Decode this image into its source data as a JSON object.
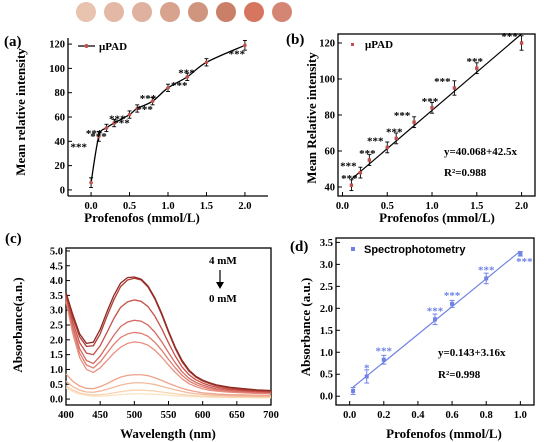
{
  "panels": {
    "a": {
      "label": "(a)",
      "xlabel": "Profenofos (mmol/L)",
      "ylabel": "Mean relative intensity",
      "legend": "μPAD",
      "star": "***"
    },
    "b": {
      "label": "(b)",
      "xlabel": "Profenofos (mmol/L)",
      "ylabel": "Mean Relative intensity",
      "legend": "μPAD",
      "equation": "y=40.068+42.5x",
      "r2": "R²=0.988",
      "star": "***"
    },
    "c": {
      "label": "(c)",
      "xlabel": "Wavelength (nm)",
      "ylabel": "Absorbance(a.n.)",
      "arrow_top": "4 mM",
      "arrow_bottom": "0 mM"
    },
    "d": {
      "label": "(d)",
      "xlabel": "Profenofos (mmol/L)",
      "ylabel": "Absorbance (a.u.)",
      "legend": "Spectrophotometry",
      "equation": "y=0.143+3.16x",
      "r2": "R²=0.998",
      "star": "***",
      "star_single": "*"
    }
  },
  "swatch_colors": [
    "#e8c3b0",
    "#e3b8a4",
    "#deb29e",
    "#d7a28e",
    "#d0957e",
    "#ca8068",
    "#d77660",
    "#d58573"
  ],
  "chart_data": [
    {
      "panel": "a",
      "type": "line",
      "x": [
        0.0,
        0.1,
        0.2,
        0.3,
        0.5,
        0.6,
        0.8,
        1.0,
        1.25,
        1.5,
        2.0
      ],
      "y": [
        6,
        44,
        51,
        55,
        62,
        67,
        73,
        84,
        93,
        105,
        119
      ],
      "err": [
        4,
        4,
        3,
        3,
        3,
        3,
        3,
        3,
        3,
        3,
        4
      ],
      "xlim": [
        -0.3,
        2.3
      ],
      "ylim": [
        -5,
        125
      ],
      "xticks": [
        0.0,
        0.5,
        1.0,
        1.5,
        2.0
      ],
      "yticks": [
        0,
        20,
        40,
        60,
        80,
        100,
        120
      ],
      "marker_color": "#c0504d",
      "line_color": "#000000"
    },
    {
      "panel": "b",
      "type": "scatter",
      "x": [
        0.1,
        0.2,
        0.3,
        0.5,
        0.6,
        0.8,
        1.0,
        1.25,
        1.5,
        2.0
      ],
      "y": [
        41,
        48,
        55,
        62,
        67,
        76,
        84,
        95,
        106,
        120
      ],
      "err": [
        3,
        3,
        3,
        3,
        3,
        3,
        3,
        4,
        3,
        4
      ],
      "fit": {
        "intercept": 40.068,
        "slope": 42.5
      },
      "xlim": [
        -0.05,
        2.15
      ],
      "ylim": [
        35,
        125
      ],
      "xticks": [
        0.0,
        0.5,
        1.0,
        1.5,
        2.0
      ],
      "yticks": [
        40,
        60,
        80,
        100,
        120
      ],
      "marker_color": "#c0504d",
      "line_color": "#000000"
    },
    {
      "panel": "c",
      "type": "line",
      "x": [
        400,
        410,
        420,
        430,
        440,
        450,
        460,
        470,
        480,
        490,
        500,
        510,
        520,
        530,
        540,
        550,
        560,
        570,
        580,
        590,
        600,
        610,
        620,
        640,
        660,
        680,
        700
      ],
      "series": [
        {
          "color": "#fbe3c2",
          "values": [
            0.38,
            0.25,
            0.17,
            0.12,
            0.1,
            0.1,
            0.11,
            0.13,
            0.15,
            0.17,
            0.18,
            0.18,
            0.17,
            0.16,
            0.15,
            0.13,
            0.11,
            0.1,
            0.09,
            0.08,
            0.07,
            0.06,
            0.06,
            0.05,
            0.05,
            0.04,
            0.04
          ]
        },
        {
          "color": "#f8d3b0",
          "values": [
            0.45,
            0.31,
            0.21,
            0.16,
            0.14,
            0.15,
            0.17,
            0.21,
            0.25,
            0.28,
            0.3,
            0.3,
            0.29,
            0.27,
            0.24,
            0.21,
            0.18,
            0.15,
            0.13,
            0.11,
            0.1,
            0.09,
            0.08,
            0.07,
            0.07,
            0.06,
            0.06
          ]
        },
        {
          "color": "#f3b99c",
          "values": [
            0.6,
            0.42,
            0.3,
            0.24,
            0.23,
            0.27,
            0.33,
            0.4,
            0.47,
            0.52,
            0.55,
            0.55,
            0.53,
            0.49,
            0.43,
            0.37,
            0.31,
            0.26,
            0.21,
            0.18,
            0.16,
            0.14,
            0.13,
            0.11,
            0.1,
            0.09,
            0.09
          ]
        },
        {
          "color": "#eea38a",
          "values": [
            0.85,
            0.6,
            0.44,
            0.36,
            0.35,
            0.42,
            0.52,
            0.64,
            0.74,
            0.8,
            0.82,
            0.82,
            0.79,
            0.72,
            0.63,
            0.53,
            0.44,
            0.36,
            0.3,
            0.25,
            0.21,
            0.19,
            0.17,
            0.15,
            0.14,
            0.13,
            0.12
          ]
        },
        {
          "color": "#e89080",
          "values": [
            3.3,
            2.2,
            1.4,
            1.0,
            0.9,
            1.05,
            1.3,
            1.55,
            1.75,
            1.88,
            1.93,
            1.9,
            1.82,
            1.65,
            1.42,
            1.15,
            0.9,
            0.68,
            0.52,
            0.42,
            0.35,
            0.3,
            0.27,
            0.23,
            0.21,
            0.19,
            0.18
          ]
        },
        {
          "color": "#e07e72",
          "values": [
            3.4,
            2.35,
            1.55,
            1.15,
            1.05,
            1.25,
            1.55,
            1.85,
            2.08,
            2.2,
            2.25,
            2.22,
            2.12,
            1.92,
            1.65,
            1.34,
            1.05,
            0.8,
            0.61,
            0.49,
            0.41,
            0.35,
            0.31,
            0.26,
            0.23,
            0.21,
            0.2
          ]
        },
        {
          "color": "#d46a62",
          "values": [
            3.45,
            2.45,
            1.7,
            1.3,
            1.2,
            1.45,
            1.8,
            2.15,
            2.45,
            2.6,
            2.66,
            2.63,
            2.5,
            2.26,
            1.94,
            1.57,
            1.22,
            0.92,
            0.7,
            0.56,
            0.47,
            0.4,
            0.35,
            0.29,
            0.26,
            0.24,
            0.22
          ]
        },
        {
          "color": "#c55046",
          "values": [
            3.5,
            2.6,
            1.9,
            1.55,
            1.5,
            1.8,
            2.25,
            2.72,
            3.1,
            3.28,
            3.35,
            3.3,
            3.12,
            2.8,
            2.38,
            1.9,
            1.45,
            1.08,
            0.82,
            0.65,
            0.54,
            0.46,
            0.4,
            0.33,
            0.29,
            0.26,
            0.24
          ]
        },
        {
          "color": "#ae3c34",
          "values": [
            3.55,
            2.75,
            2.1,
            1.78,
            1.8,
            2.2,
            2.8,
            3.35,
            3.8,
            4.02,
            4.08,
            4.02,
            3.78,
            3.38,
            2.85,
            2.25,
            1.7,
            1.25,
            0.94,
            0.74,
            0.61,
            0.52,
            0.45,
            0.37,
            0.32,
            0.29,
            0.27
          ]
        },
        {
          "color": "#8e2a24",
          "values": [
            3.6,
            2.85,
            2.2,
            1.88,
            1.92,
            2.35,
            2.95,
            3.5,
            3.92,
            4.1,
            4.12,
            4.05,
            3.82,
            3.42,
            2.9,
            2.3,
            1.75,
            1.3,
            0.98,
            0.77,
            0.64,
            0.55,
            0.48,
            0.4,
            0.35,
            0.31,
            0.29
          ]
        }
      ],
      "xlim": [
        400,
        700
      ],
      "ylim": [
        -0.2,
        5.1
      ],
      "xticks": [
        400,
        450,
        500,
        550,
        600,
        650,
        700
      ],
      "yticks": [
        0.0,
        0.5,
        1.0,
        1.5,
        2.0,
        2.5,
        3.0,
        3.5,
        4.0,
        4.5,
        5.0
      ]
    },
    {
      "panel": "d",
      "type": "scatter",
      "x": [
        0.02,
        0.1,
        0.2,
        0.5,
        0.6,
        0.8,
        1.0
      ],
      "y": [
        0.12,
        0.45,
        0.83,
        1.75,
        2.1,
        2.68,
        3.24
      ],
      "err": [
        0.08,
        0.15,
        0.1,
        0.12,
        0.08,
        0.12,
        0.05
      ],
      "fit": {
        "intercept": 0.143,
        "slope": 3.16
      },
      "xlim": [
        -0.08,
        1.08
      ],
      "ylim": [
        -0.2,
        3.6
      ],
      "xticks": [
        0.0,
        0.2,
        0.4,
        0.6,
        0.8,
        1.0
      ],
      "yticks": [
        0.0,
        0.5,
        1.0,
        1.5,
        2.0,
        2.5,
        3.0,
        3.5
      ],
      "marker_color": "#6f82e6",
      "line_color": "#6f82e6"
    }
  ]
}
